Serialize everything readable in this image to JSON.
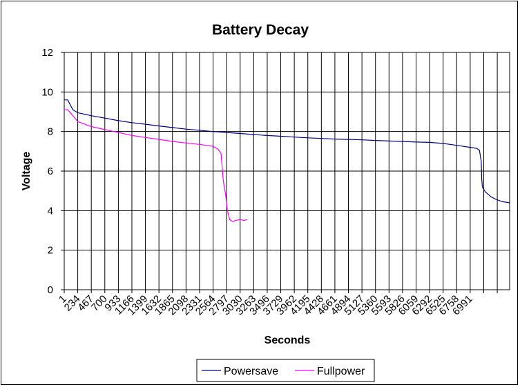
{
  "chart_data": {
    "type": "line",
    "title": "Battery Decay",
    "xlabel": "Seconds",
    "ylabel": "Voltage",
    "ylim": [
      0,
      12
    ],
    "y_ticks": [
      "0",
      "2",
      "4",
      "6",
      "8",
      "10",
      "12"
    ],
    "grid": true,
    "legend_position": "bottom",
    "x_tick_labels": [
      "1",
      "234",
      "467",
      "700",
      "933",
      "1166",
      "1399",
      "1632",
      "1865",
      "2098",
      "2331",
      "2564",
      "2797",
      "3030",
      "3263",
      "3496",
      "3729",
      "3962",
      "4195",
      "4428",
      "4661",
      "4894",
      "5127",
      "5360",
      "5593",
      "5826",
      "6059",
      "6292",
      "6525",
      "6758",
      "6991"
    ],
    "x_tick_step": 233,
    "x_max": 7670,
    "series": [
      {
        "name": "Powersave",
        "color": "#000080",
        "x": [
          1,
          60,
          150,
          234,
          467,
          700,
          933,
          1166,
          1399,
          1632,
          1865,
          2098,
          2331,
          2564,
          2797,
          3030,
          3263,
          3496,
          3729,
          3962,
          4195,
          4428,
          4661,
          4894,
          5127,
          5360,
          5593,
          5826,
          6059,
          6292,
          6525,
          6758,
          6991,
          7100,
          7150,
          7180,
          7190,
          7200,
          7250,
          7350,
          7450,
          7550,
          7670
        ],
        "y": [
          9.6,
          9.6,
          9.1,
          8.95,
          8.8,
          8.68,
          8.55,
          8.45,
          8.37,
          8.28,
          8.2,
          8.12,
          8.06,
          8.0,
          7.95,
          7.9,
          7.85,
          7.8,
          7.76,
          7.72,
          7.68,
          7.65,
          7.62,
          7.6,
          7.58,
          7.55,
          7.52,
          7.5,
          7.47,
          7.45,
          7.4,
          7.3,
          7.2,
          7.15,
          7.05,
          6.5,
          5.6,
          5.2,
          4.95,
          4.7,
          4.55,
          4.45,
          4.4
        ]
      },
      {
        "name": "Fullpower",
        "color": "#ff00ff",
        "x": [
          1,
          60,
          150,
          234,
          467,
          700,
          933,
          1166,
          1399,
          1632,
          1865,
          2098,
          2331,
          2564,
          2650,
          2700,
          2740,
          2780,
          2810,
          2850,
          2900,
          2950,
          3030,
          3100,
          3150
        ],
        "y": [
          9.1,
          9.1,
          8.8,
          8.5,
          8.25,
          8.1,
          7.95,
          7.8,
          7.7,
          7.6,
          7.5,
          7.42,
          7.35,
          7.25,
          7.1,
          6.9,
          5.5,
          4.8,
          4.0,
          3.55,
          3.45,
          3.5,
          3.55,
          3.5,
          3.55
        ]
      }
    ]
  }
}
